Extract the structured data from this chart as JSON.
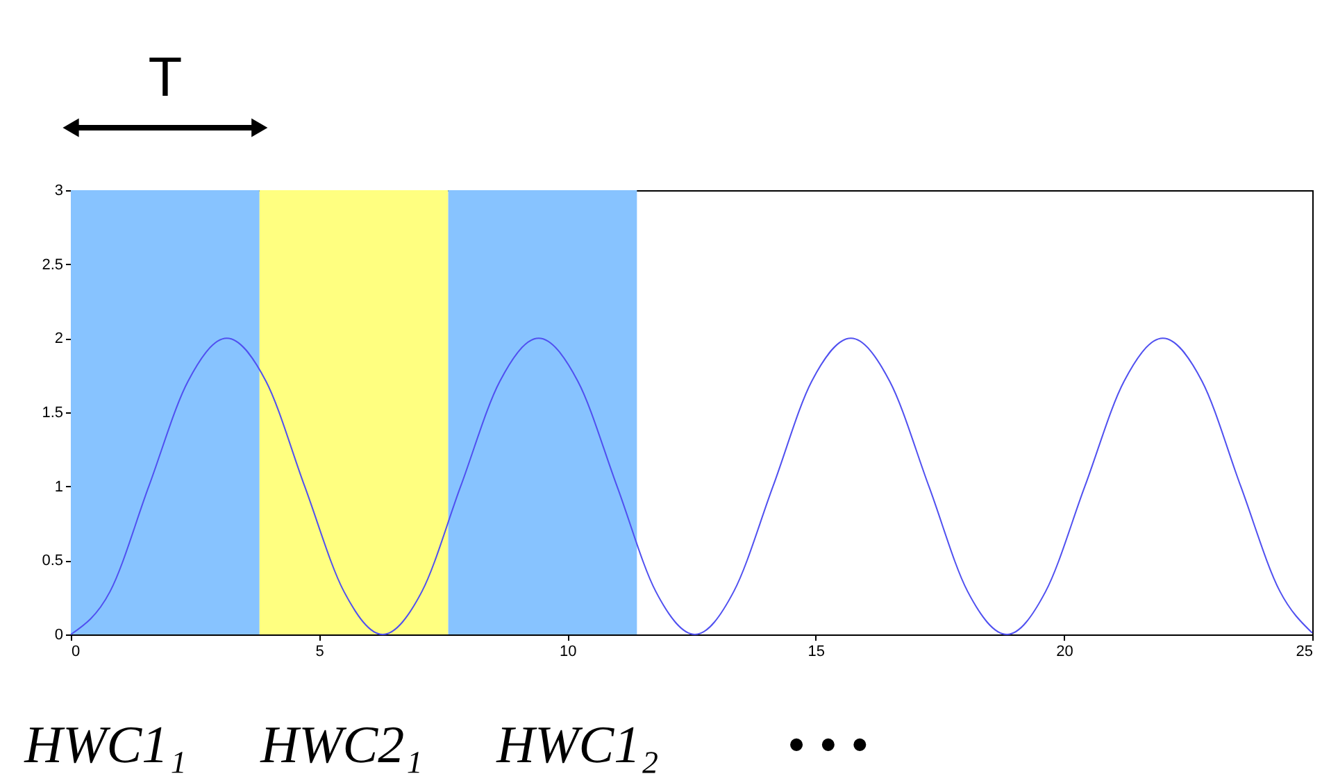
{
  "chart_data": {
    "type": "line",
    "x": [
      0,
      0.79,
      1.57,
      2.36,
      3.14,
      3.93,
      4.71,
      5.5,
      6.28,
      7.07,
      7.85,
      8.64,
      9.42,
      10.21,
      11,
      11.78,
      12.57,
      13.35,
      14.14,
      14.92,
      15.71,
      16.49,
      17.28,
      18.06,
      18.85,
      19.63,
      20.42,
      21.21,
      21.99,
      22.78,
      23.56,
      24.35,
      25
    ],
    "series": [
      {
        "color": "#5050f0",
        "values": [
          0,
          0.29,
          1,
          1.71,
          2,
          1.71,
          1,
          0.29,
          0,
          0.29,
          1,
          1.71,
          2,
          1.71,
          1,
          0.29,
          0,
          0.29,
          1,
          1.71,
          2,
          1.71,
          1,
          0.29,
          0,
          0.29,
          1,
          1.71,
          2,
          1.71,
          1,
          0.29,
          0.01
        ]
      }
    ],
    "xlim": [
      0,
      25
    ],
    "xticks": [
      0,
      5,
      10,
      15,
      20,
      25
    ],
    "ylim": [
      0,
      3
    ],
    "yticks": [
      0,
      0.5,
      1,
      1.5,
      2,
      2.5,
      3
    ],
    "bands": [
      {
        "axis": "x",
        "from": 0,
        "to": 3.8,
        "color": "#87c3ff"
      },
      {
        "axis": "x",
        "from": 3.8,
        "to": 7.6,
        "color": "#ffff80"
      },
      {
        "axis": "x",
        "from": 7.6,
        "to": 11.4,
        "color": "#87c3ff"
      }
    ],
    "annotations": [
      "T",
      "HWC1₁",
      "HWC2₁",
      "HWC1₂",
      "• • •"
    ],
    "grid": false,
    "marker": "none",
    "line_style": "solid"
  }
}
